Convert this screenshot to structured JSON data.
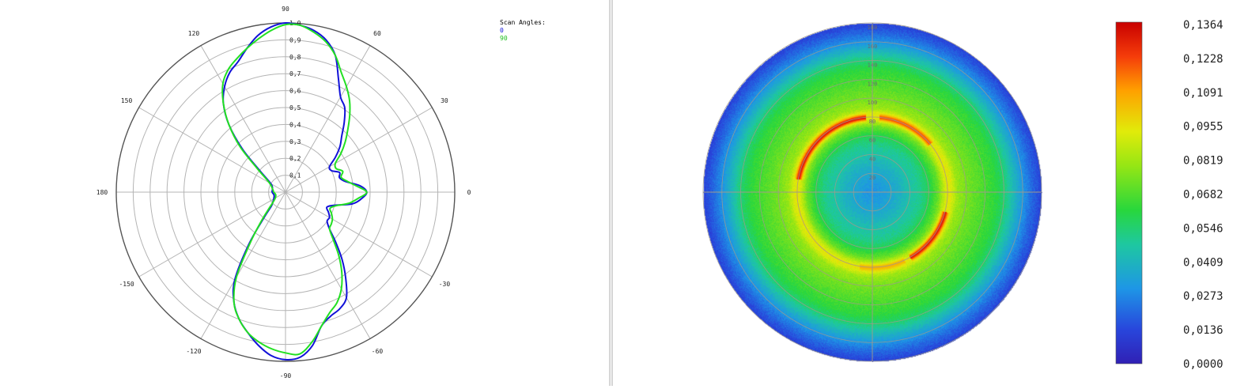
{
  "colors": {
    "series_0": "#1212d8",
    "series_90": "#22e022",
    "grid": "#b4b4b4",
    "outer_ring": "#555555"
  },
  "legend": {
    "title": "Scan Angles:",
    "items": [
      "0",
      "90"
    ]
  },
  "chart_data": [
    {
      "type": "line",
      "subtype": "polar",
      "title": "",
      "angle_unit": "degrees",
      "angle_ticks": [
        90,
        60,
        30,
        0,
        -30,
        -60,
        -90,
        -120,
        -150,
        180,
        150,
        120
      ],
      "radial_ticks": [
        "0,1",
        "0,2",
        "0,3",
        "0,4",
        "0,5",
        "0,6",
        "0,7",
        "0,8",
        "0,9",
        "1.0"
      ],
      "rlim": [
        0,
        1.0
      ],
      "grid": true,
      "legend_position": "top-right",
      "series": [
        {
          "name": "0",
          "color": "#1212d8",
          "theta": [
            -180,
            -165,
            -150,
            -140,
            -135,
            -130,
            -125,
            -120,
            -115,
            -110,
            -105,
            -100,
            -95,
            -90,
            -85,
            -80,
            -75,
            -70,
            -65,
            -60,
            -55,
            -50,
            -45,
            -40,
            -35,
            -30,
            -25,
            -20,
            -15,
            -10,
            -5,
            0,
            5,
            10,
            15,
            20,
            25,
            30,
            35,
            40,
            45,
            50,
            55,
            60,
            65,
            70,
            75,
            80,
            85,
            90,
            95,
            100,
            105,
            110,
            115,
            120,
            125,
            130,
            135,
            140,
            150,
            165,
            180
          ],
          "r": [
            0.08,
            0.07,
            0.08,
            0.1,
            0.12,
            0.2,
            0.38,
            0.6,
            0.72,
            0.8,
            0.86,
            0.92,
            0.97,
            0.99,
            0.98,
            0.92,
            0.82,
            0.78,
            0.76,
            0.72,
            0.62,
            0.52,
            0.42,
            0.34,
            0.3,
            0.3,
            0.28,
            0.26,
            0.3,
            0.4,
            0.45,
            0.48,
            0.44,
            0.36,
            0.33,
            0.34,
            0.3,
            0.3,
            0.36,
            0.42,
            0.47,
            0.54,
            0.61,
            0.65,
            0.74,
            0.86,
            0.93,
            0.97,
            0.99,
            1.0,
            0.98,
            0.94,
            0.88,
            0.82,
            0.78,
            0.72,
            0.64,
            0.52,
            0.36,
            0.2,
            0.1,
            0.08,
            0.08
          ]
        },
        {
          "name": "90",
          "color": "#22e022",
          "theta": [
            -180,
            -165,
            -150,
            -140,
            -135,
            -130,
            -125,
            -120,
            -115,
            -110,
            -105,
            -100,
            -95,
            -90,
            -85,
            -80,
            -75,
            -70,
            -65,
            -60,
            -55,
            -50,
            -45,
            -40,
            -35,
            -30,
            -25,
            -20,
            -15,
            -10,
            -5,
            0,
            5,
            10,
            15,
            20,
            25,
            30,
            35,
            40,
            45,
            50,
            55,
            60,
            65,
            70,
            75,
            80,
            85,
            90,
            95,
            100,
            105,
            110,
            115,
            120,
            125,
            130,
            135,
            140,
            150,
            165,
            180
          ],
          "r": [
            0.07,
            0.06,
            0.07,
            0.1,
            0.14,
            0.22,
            0.36,
            0.58,
            0.72,
            0.8,
            0.86,
            0.9,
            0.93,
            0.95,
            0.96,
            0.9,
            0.82,
            0.76,
            0.72,
            0.66,
            0.58,
            0.49,
            0.4,
            0.34,
            0.33,
            0.32,
            0.3,
            0.28,
            0.31,
            0.38,
            0.43,
            0.48,
            0.42,
            0.37,
            0.34,
            0.36,
            0.33,
            0.34,
            0.4,
            0.46,
            0.52,
            0.59,
            0.66,
            0.72,
            0.78,
            0.86,
            0.92,
            0.96,
            0.99,
            0.99,
            0.96,
            0.92,
            0.88,
            0.84,
            0.8,
            0.74,
            0.64,
            0.52,
            0.38,
            0.22,
            0.11,
            0.08,
            0.07
          ]
        }
      ]
    },
    {
      "type": "heatmap",
      "subtype": "polar",
      "title": "",
      "radial_ticks": [
        "20",
        "40",
        "60",
        "80",
        "100",
        "120",
        "140",
        "160",
        "180"
      ],
      "rlim": [
        0,
        180
      ],
      "grid": true,
      "colorbar": {
        "ticks": [
          "0,1364",
          "0,1228",
          "0,1091",
          "0,0955",
          "0,0819",
          "0,0682",
          "0,0546",
          "0,0409",
          "0,0273",
          "0,0136",
          "0,0000"
        ],
        "range": [
          0,
          0.1364
        ],
        "position": "right"
      },
      "radial_profile": {
        "r": [
          0,
          10,
          20,
          30,
          40,
          50,
          60,
          70,
          75,
          80,
          85,
          90,
          100,
          110,
          120,
          130,
          140,
          150,
          160,
          170,
          180
        ],
        "v": [
          0.03,
          0.032,
          0.036,
          0.04,
          0.046,
          0.05,
          0.058,
          0.072,
          0.085,
          0.095,
          0.09,
          0.08,
          0.074,
          0.07,
          0.066,
          0.062,
          0.054,
          0.042,
          0.03,
          0.02,
          0.012
        ]
      },
      "hot_arcs": [
        {
          "r": 80,
          "from_deg": 95,
          "to_deg": 170,
          "value": 0.13
        },
        {
          "r": 80,
          "from_deg": 40,
          "to_deg": 85,
          "value": 0.12
        },
        {
          "r": 80,
          "from_deg": -60,
          "to_deg": -15,
          "value": 0.13
        },
        {
          "r": 80,
          "from_deg": -100,
          "to_deg": -65,
          "value": 0.105
        }
      ]
    }
  ]
}
